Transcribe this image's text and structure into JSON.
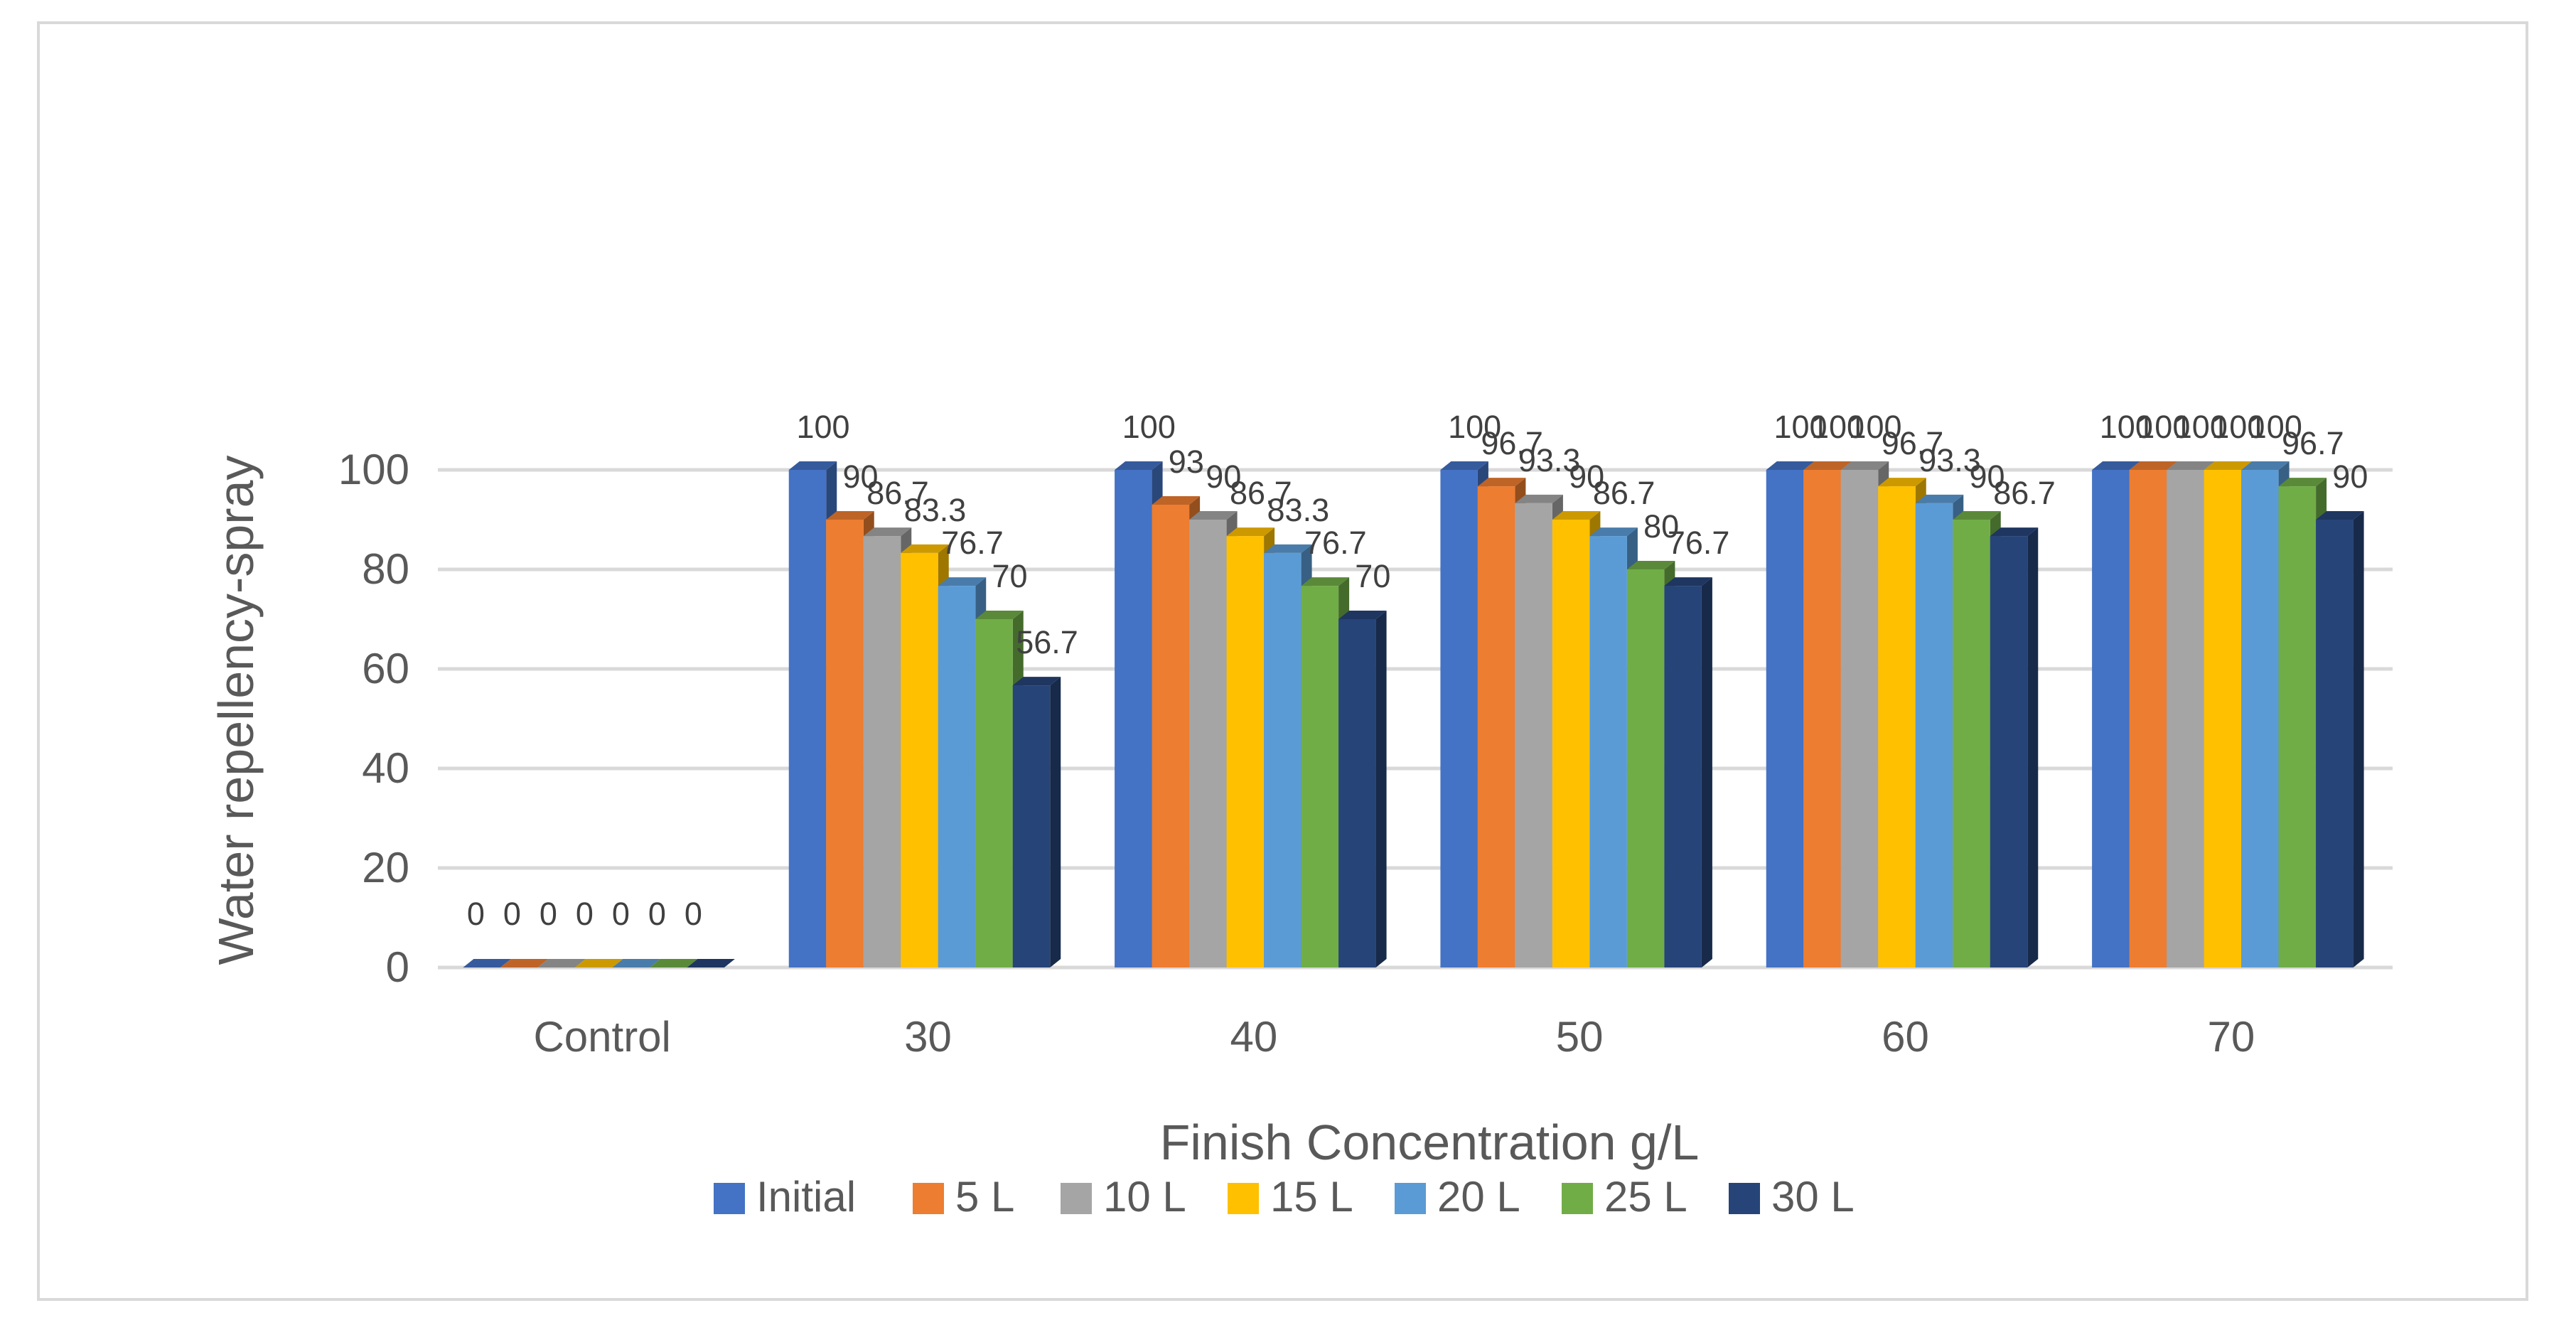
{
  "chart_data": {
    "type": "bar",
    "xlabel": "Finish Concentration g/L",
    "ylabel": "Water repellency-spray",
    "ylim": [
      0,
      100
    ],
    "yticks": [
      0,
      20,
      40,
      60,
      80,
      100
    ],
    "grid": true,
    "legend_position": "bottom",
    "categories": [
      "Control",
      "30",
      "40",
      "50",
      "60",
      "70"
    ],
    "series": [
      {
        "name": "Initial",
        "color": "#4472C4",
        "values": [
          0,
          100,
          100,
          100,
          100,
          100
        ]
      },
      {
        "name": "5 L",
        "color": "#ED7D31",
        "values": [
          0,
          90,
          93,
          96.7,
          100,
          100
        ]
      },
      {
        "name": "10 L",
        "color": "#A5A5A5",
        "values": [
          0,
          86.7,
          90,
          93.3,
          100,
          100
        ]
      },
      {
        "name": "15 L",
        "color": "#FFC000",
        "values": [
          0,
          83.3,
          86.7,
          90,
          96.7,
          100
        ]
      },
      {
        "name": "20 L",
        "color": "#5B9BD5",
        "values": [
          0,
          76.7,
          83.3,
          86.7,
          93.3,
          100
        ]
      },
      {
        "name": "25 L",
        "color": "#70AD47",
        "values": [
          0,
          70,
          76.7,
          80,
          90,
          96.7
        ]
      },
      {
        "name": "30 L",
        "color": "#264478",
        "values": [
          0,
          56.7,
          70,
          76.7,
          86.7,
          90
        ]
      }
    ]
  }
}
